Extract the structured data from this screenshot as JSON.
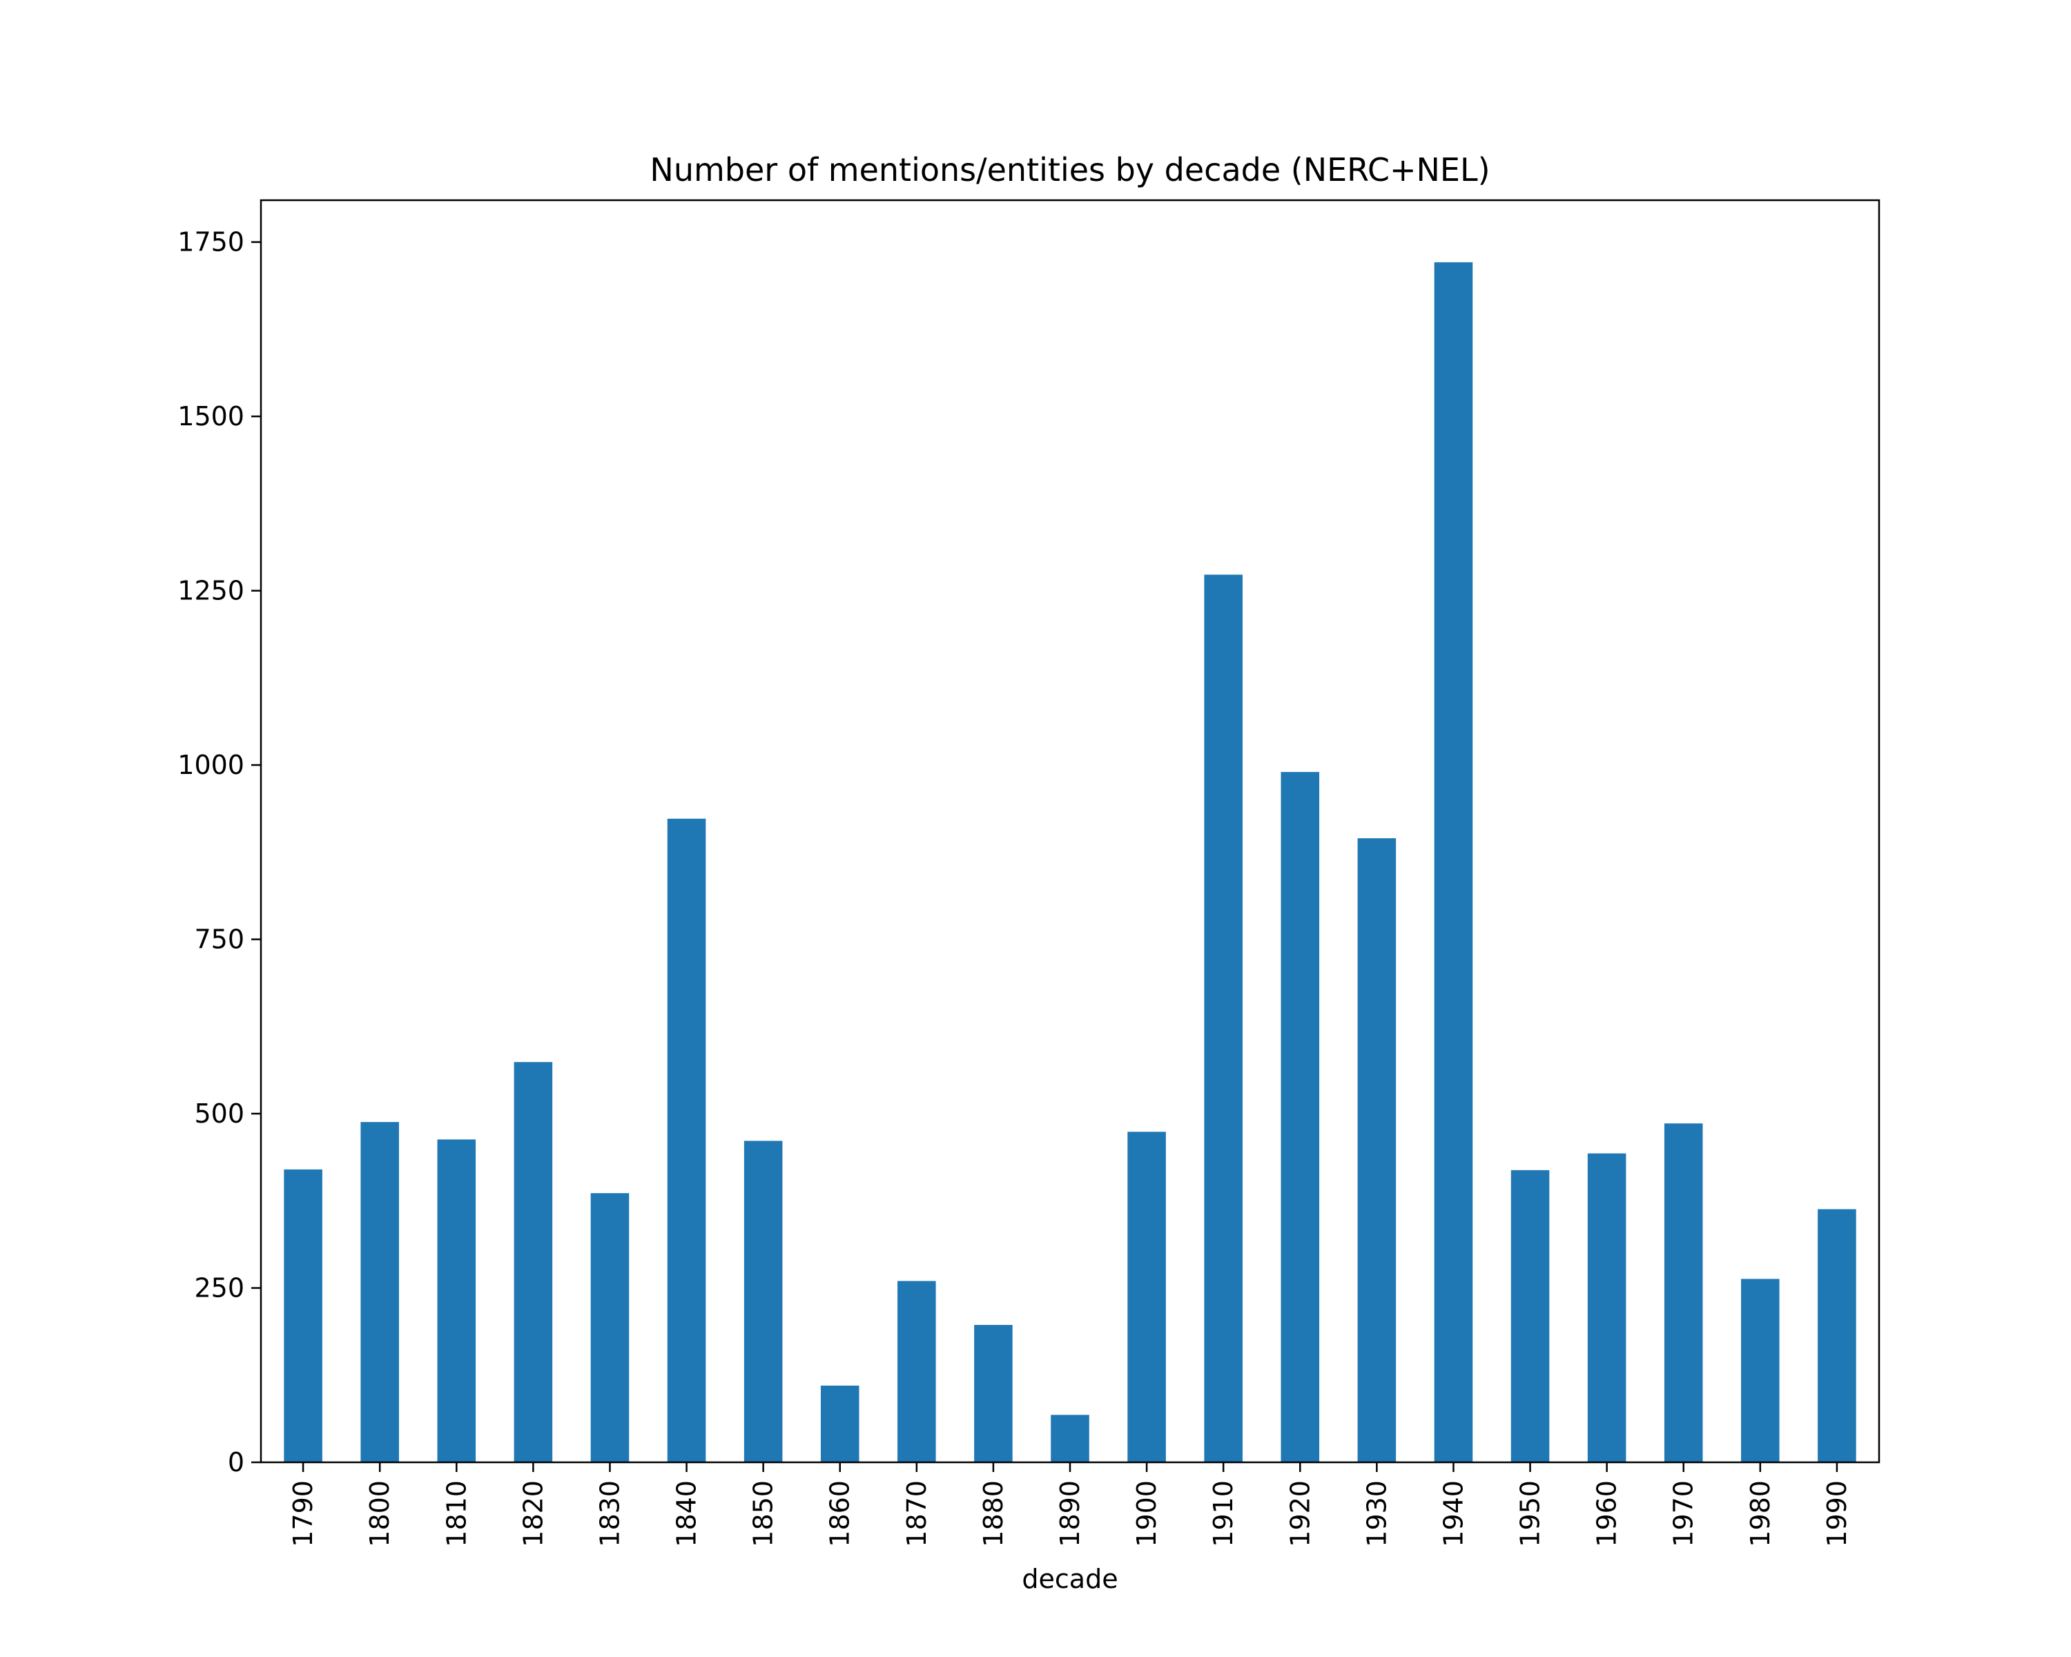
{
  "chart_data": {
    "type": "bar",
    "title": "Number of mentions/entities by decade (NERC+NEL)",
    "xlabel": "decade",
    "ylabel": "",
    "categories": [
      "1790",
      "1800",
      "1810",
      "1820",
      "1830",
      "1840",
      "1850",
      "1860",
      "1870",
      "1880",
      "1890",
      "1900",
      "1910",
      "1920",
      "1930",
      "1940",
      "1950",
      "1960",
      "1970",
      "1980",
      "1990"
    ],
    "values": [
      420,
      488,
      463,
      574,
      386,
      923,
      461,
      110,
      260,
      197,
      68,
      474,
      1273,
      990,
      895,
      1721,
      419,
      443,
      486,
      263,
      363
    ],
    "ylim": [
      0,
      1810
    ],
    "yticks": [
      0,
      250,
      500,
      750,
      1000,
      1250,
      1500,
      1750
    ],
    "bar_color": "#1f77b4",
    "grid": false,
    "legend": false
  }
}
